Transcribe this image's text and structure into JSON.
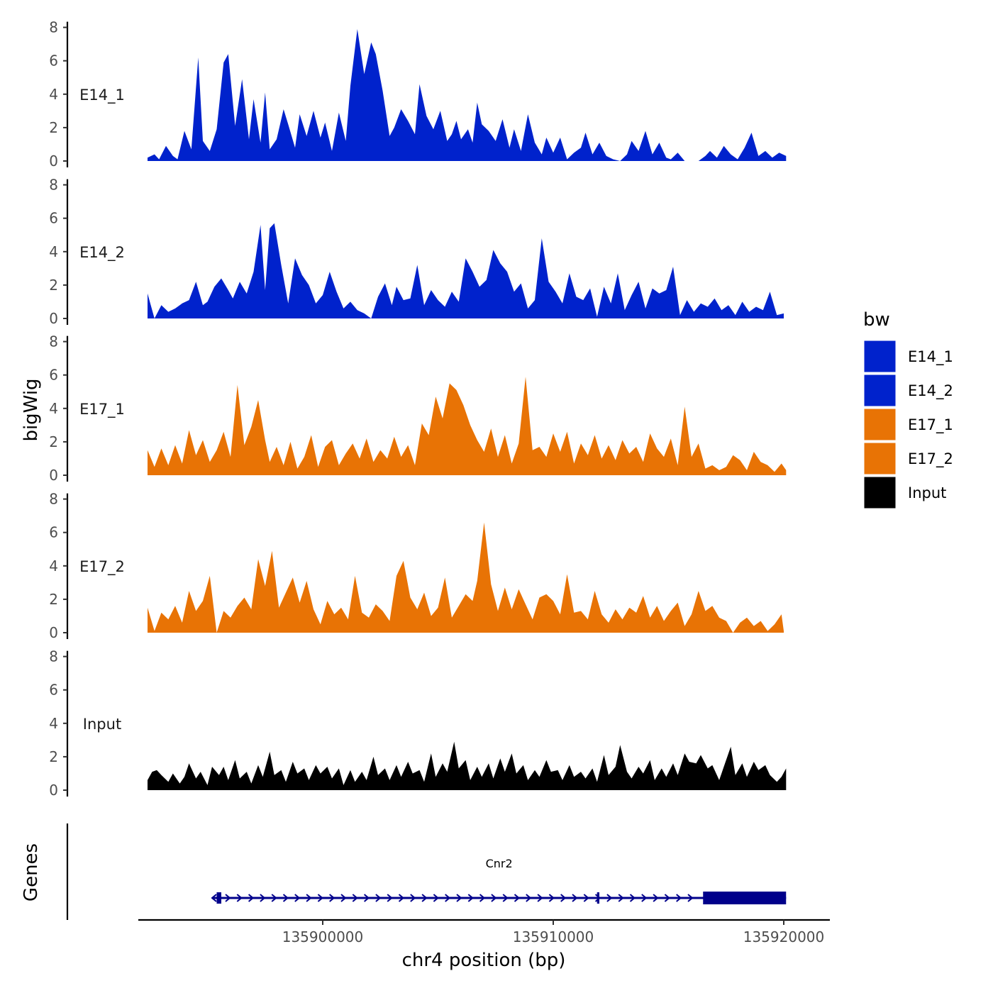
{
  "chart_data": {
    "type": "area",
    "xlabel": "chr4 position (bp)",
    "ylabel": "bigWig",
    "genes_label": "Genes",
    "xlim": [
      135892000,
      135922000
    ],
    "x_ticks": [
      135900000,
      135910000,
      135920000
    ],
    "x_tick_labels": [
      "135900000",
      "135910000",
      "135920000"
    ],
    "ylim": [
      0,
      8
    ],
    "y_ticks": [
      0,
      2,
      4,
      6,
      8
    ],
    "y_tick_labels": [
      "0",
      "2",
      "4",
      "6",
      "8"
    ],
    "legend": {
      "title": "bw",
      "entries": [
        {
          "label": "E14_1",
          "color": "#0022CC"
        },
        {
          "label": "E14_2",
          "color": "#0022CC"
        },
        {
          "label": "E17_1",
          "color": "#E87305"
        },
        {
          "label": "E17_2",
          "color": "#E87305"
        },
        {
          "label": "Input",
          "color": "#000000"
        }
      ]
    },
    "series": [
      {
        "name": "E14_1",
        "color": "#0022CC",
        "x": [
          135892400,
          135892700,
          135892900,
          135893200,
          135893500,
          135893700,
          135894000,
          135894300,
          135894600,
          135894800,
          135895100,
          135895400,
          135895700,
          135895900,
          135896200,
          135896500,
          135896800,
          135897000,
          135897300,
          135897500,
          135897700,
          135898000,
          135898300,
          135898500,
          135898800,
          135899000,
          135899300,
          135899600,
          135899900,
          135900100,
          135900400,
          135900700,
          135901000,
          135901200,
          135901500,
          135901800,
          135902100,
          135902300,
          135902600,
          135902900,
          135903100,
          135903400,
          135903700,
          135904000,
          135904200,
          135904500,
          135904800,
          135905100,
          135905400,
          135905600,
          135905800,
          135906000,
          135906300,
          135906500,
          135906700,
          135906900,
          135907200,
          135907500,
          135907800,
          135908100,
          135908300,
          135908600,
          135908900,
          135909200,
          135909500,
          135909700,
          135910000,
          135910300,
          135910600,
          135910900,
          135911200,
          135911400,
          135911700,
          135912000,
          135912300,
          135912600,
          135912900,
          135913200,
          135913400,
          135913700,
          135914000,
          135914300,
          135914600,
          135914900,
          135915100,
          135915400,
          135915700,
          135916000,
          135916300,
          135916600,
          135916800,
          135917100,
          135917400,
          135917700,
          135918000,
          135918300,
          135918600,
          135918900,
          135919200,
          135919500,
          135919800,
          135920100
        ],
        "y": [
          0.2,
          0.4,
          0.1,
          0.9,
          0.3,
          0.1,
          1.8,
          0.7,
          6.2,
          1.2,
          0.6,
          1.9,
          5.9,
          6.4,
          2.1,
          4.9,
          1.3,
          3.7,
          1.1,
          4.1,
          0.7,
          1.3,
          3.1,
          2.2,
          0.8,
          2.8,
          1.5,
          3.0,
          1.4,
          2.3,
          0.6,
          2.9,
          1.2,
          4.5,
          7.9,
          5.2,
          7.1,
          6.4,
          4.2,
          1.5,
          2.0,
          3.1,
          2.4,
          1.6,
          4.6,
          2.7,
          1.9,
          3.0,
          1.2,
          1.6,
          2.4,
          1.3,
          1.9,
          1.1,
          3.5,
          2.2,
          1.8,
          1.2,
          2.5,
          0.8,
          1.9,
          0.6,
          2.8,
          1.1,
          0.4,
          1.4,
          0.5,
          1.4,
          0.1,
          0.5,
          0.8,
          1.7,
          0.4,
          1.1,
          0.3,
          0.1,
          0.0,
          0.4,
          1.2,
          0.6,
          1.8,
          0.4,
          1.1,
          0.2,
          0.1,
          0.5,
          0.0,
          0.0,
          0.0,
          0.3,
          0.6,
          0.2,
          0.9,
          0.4,
          0.1,
          0.8,
          1.7,
          0.3,
          0.6,
          0.2,
          0.5,
          0.3
        ]
      },
      {
        "name": "E14_2",
        "color": "#0022CC",
        "x": [
          135892400,
          135892700,
          135893000,
          135893300,
          135893600,
          135893900,
          135894200,
          135894500,
          135894800,
          135895000,
          135895300,
          135895600,
          135895900,
          135896100,
          135896400,
          135896700,
          135897000,
          135897300,
          135897500,
          135897700,
          135897900,
          135898200,
          135898500,
          135898800,
          135899100,
          135899400,
          135899700,
          135900000,
          135900300,
          135900600,
          135900900,
          135901200,
          135901500,
          135901800,
          135902100,
          135902400,
          135902700,
          135903000,
          135903200,
          135903500,
          135903800,
          135904100,
          135904400,
          135904700,
          135905000,
          135905300,
          135905600,
          135905900,
          135906200,
          135906500,
          135906800,
          135907100,
          135907400,
          135907700,
          135908000,
          135908300,
          135908600,
          135908900,
          135909200,
          135909500,
          135909800,
          135910100,
          135910400,
          135910700,
          135911000,
          135911300,
          135911600,
          135911900,
          135912200,
          135912500,
          135912800,
          135913100,
          135913400,
          135913700,
          135914000,
          135914300,
          135914600,
          135914900,
          135915200,
          135915500,
          135915800,
          135916100,
          135916400,
          135916700,
          135917000,
          135917300,
          135917600,
          135917900,
          135918200,
          135918500,
          135918800,
          135919100,
          135919400,
          135919700,
          135920000
        ],
        "y": [
          1.5,
          0.0,
          0.8,
          0.4,
          0.6,
          0.9,
          1.1,
          2.2,
          0.8,
          1.0,
          1.9,
          2.4,
          1.7,
          1.2,
          2.2,
          1.5,
          2.8,
          5.6,
          1.7,
          5.4,
          5.7,
          3.2,
          0.9,
          3.6,
          2.6,
          2.0,
          0.9,
          1.4,
          2.8,
          1.6,
          0.6,
          1.0,
          0.5,
          0.3,
          0.0,
          1.3,
          2.1,
          0.8,
          1.9,
          1.1,
          1.2,
          3.2,
          0.8,
          1.7,
          1.1,
          0.7,
          1.6,
          1.0,
          3.6,
          2.8,
          1.9,
          2.3,
          4.1,
          3.3,
          2.8,
          1.6,
          2.1,
          0.6,
          1.1,
          4.8,
          2.2,
          1.6,
          0.9,
          2.7,
          1.3,
          1.1,
          1.8,
          0.1,
          1.9,
          0.9,
          2.7,
          0.5,
          1.4,
          2.2,
          0.6,
          1.8,
          1.5,
          1.7,
          3.1,
          0.2,
          1.1,
          0.4,
          0.9,
          0.7,
          1.2,
          0.5,
          0.8,
          0.2,
          1.0,
          0.4,
          0.7,
          0.5,
          1.6,
          0.2,
          0.3
        ]
      },
      {
        "name": "E17_1",
        "color": "#E87305",
        "x": [
          135892400,
          135892700,
          135893000,
          135893300,
          135893600,
          135893900,
          135894200,
          135894500,
          135894800,
          135895100,
          135895400,
          135895700,
          135896000,
          135896300,
          135896600,
          135896900,
          135897200,
          135897500,
          135897700,
          135898000,
          135898300,
          135898600,
          135898900,
          135899200,
          135899500,
          135899800,
          135900100,
          135900400,
          135900700,
          135901000,
          135901300,
          135901600,
          135901900,
          135902200,
          135902500,
          135902800,
          135903100,
          135903400,
          135903700,
          135904000,
          135904300,
          135904600,
          135904900,
          135905200,
          135905500,
          135905800,
          135906100,
          135906400,
          135906700,
          135907000,
          135907300,
          135907600,
          135907900,
          135908200,
          135908500,
          135908800,
          135909100,
          135909400,
          135909700,
          135910000,
          135910300,
          135910600,
          135910900,
          135911200,
          135911500,
          135911800,
          135912100,
          135912400,
          135912700,
          135913000,
          135913300,
          135913600,
          135913900,
          135914200,
          135914500,
          135914800,
          135915100,
          135915400,
          135915700,
          135916000,
          135916300,
          135916600,
          135916900,
          135917200,
          135917500,
          135917800,
          135918100,
          135918400,
          135918700,
          135919000,
          135919300,
          135919600,
          135919900,
          135920100
        ],
        "y": [
          1.5,
          0.5,
          1.6,
          0.6,
          1.8,
          0.7,
          2.7,
          1.2,
          2.1,
          0.8,
          1.5,
          2.6,
          1.1,
          5.4,
          1.8,
          2.9,
          4.5,
          2.1,
          0.8,
          1.7,
          0.6,
          2.0,
          0.4,
          1.1,
          2.4,
          0.5,
          1.7,
          2.1,
          0.6,
          1.3,
          1.9,
          1.0,
          2.2,
          0.8,
          1.5,
          1.0,
          2.3,
          1.1,
          1.8,
          0.6,
          3.1,
          2.4,
          4.7,
          3.4,
          5.5,
          5.1,
          4.2,
          3.0,
          2.1,
          1.4,
          2.8,
          1.1,
          2.4,
          0.7,
          1.9,
          5.9,
          1.5,
          1.7,
          1.1,
          2.5,
          1.4,
          2.6,
          0.7,
          1.9,
          1.2,
          2.4,
          1.0,
          1.8,
          0.9,
          2.1,
          1.3,
          1.7,
          0.8,
          2.5,
          1.6,
          1.1,
          2.2,
          0.6,
          4.1,
          1.1,
          1.9,
          0.4,
          0.6,
          0.3,
          0.5,
          1.2,
          0.9,
          0.3,
          1.4,
          0.8,
          0.6,
          0.2,
          0.7,
          0.3
        ]
      },
      {
        "name": "E17_2",
        "color": "#E87305",
        "x": [
          135892400,
          135892700,
          135893000,
          135893300,
          135893600,
          135893900,
          135894200,
          135894500,
          135894800,
          135895100,
          135895400,
          135895700,
          135896000,
          135896300,
          135896600,
          135896900,
          135897200,
          135897500,
          135897800,
          135898100,
          135898400,
          135898700,
          135899000,
          135899300,
          135899600,
          135899900,
          135900200,
          135900500,
          135900800,
          135901100,
          135901400,
          135901700,
          135902000,
          135902300,
          135902600,
          135902900,
          135903200,
          135903500,
          135903800,
          135904100,
          135904400,
          135904700,
          135905000,
          135905300,
          135905600,
          135905900,
          135906200,
          135906500,
          135906700,
          135907000,
          135907300,
          135907600,
          135907900,
          135908200,
          135908500,
          135908800,
          135909100,
          135909400,
          135909700,
          135910000,
          135910300,
          135910600,
          135910900,
          135911200,
          135911500,
          135911800,
          135912100,
          135912400,
          135912700,
          135913000,
          135913300,
          135913600,
          135913900,
          135914200,
          135914500,
          135914800,
          135915100,
          135915400,
          135915700,
          135916000,
          135916300,
          135916600,
          135916900,
          135917200,
          135917500,
          135917800,
          135918100,
          135918400,
          135918700,
          135919000,
          135919300,
          135919600,
          135919900,
          135920000
        ],
        "y": [
          1.5,
          0.1,
          1.2,
          0.8,
          1.6,
          0.6,
          2.5,
          1.3,
          1.9,
          3.4,
          0.0,
          1.3,
          0.9,
          1.6,
          2.1,
          1.4,
          4.4,
          2.8,
          4.9,
          1.5,
          2.4,
          3.3,
          1.8,
          3.1,
          1.4,
          0.5,
          1.9,
          1.1,
          1.5,
          0.8,
          3.4,
          1.2,
          0.9,
          1.7,
          1.3,
          0.7,
          3.4,
          4.3,
          2.1,
          1.4,
          2.4,
          1.0,
          1.5,
          3.3,
          0.9,
          1.6,
          2.3,
          1.9,
          3.1,
          6.6,
          2.9,
          1.3,
          2.7,
          1.4,
          2.6,
          1.7,
          0.8,
          2.1,
          2.3,
          1.9,
          1.1,
          3.5,
          1.2,
          1.3,
          0.8,
          2.5,
          1.1,
          0.6,
          1.4,
          0.8,
          1.5,
          1.2,
          2.2,
          0.9,
          1.6,
          0.7,
          1.3,
          1.8,
          0.4,
          1.1,
          2.5,
          1.3,
          1.6,
          0.9,
          0.7,
          0.0,
          0.6,
          0.9,
          0.4,
          0.7,
          0.1,
          0.5,
          1.1,
          0.1
        ]
      },
      {
        "name": "Input",
        "color": "#000000",
        "x": [
          135892400,
          135892600,
          135892800,
          135893000,
          135893300,
          135893500,
          135893800,
          135894000,
          135894200,
          135894500,
          135894700,
          135895000,
          135895200,
          135895500,
          135895700,
          135895900,
          135896200,
          135896400,
          135896700,
          135896900,
          135897200,
          135897400,
          135897700,
          135897900,
          135898200,
          135898400,
          135898700,
          135898900,
          135899200,
          135899400,
          135899700,
          135899900,
          135900200,
          135900400,
          135900700,
          135900900,
          135901200,
          135901400,
          135901700,
          135901900,
          135902200,
          135902400,
          135902700,
          135902900,
          135903200,
          135903400,
          135903700,
          135903900,
          135904200,
          135904400,
          135904700,
          135904900,
          135905200,
          135905400,
          135905700,
          135905900,
          135906200,
          135906400,
          135906700,
          135906900,
          135907200,
          135907400,
          135907700,
          135907900,
          135908200,
          135908400,
          135908700,
          135908900,
          135909200,
          135909400,
          135909700,
          135909900,
          135910200,
          135910400,
          135910700,
          135910900,
          135911200,
          135911400,
          135911700,
          135911900,
          135912200,
          135912400,
          135912700,
          135912900,
          135913200,
          135913400,
          135913700,
          135913900,
          135914200,
          135914400,
          135914700,
          135914900,
          135915200,
          135915400,
          135915700,
          135915900,
          135916200,
          135916400,
          135916700,
          135916900,
          135917200,
          135917400,
          135917700,
          135917900,
          135918200,
          135918400,
          135918700,
          135918900,
          135919200,
          135919400,
          135919700,
          135919900,
          135920100
        ],
        "y": [
          0.6,
          1.1,
          1.2,
          0.9,
          0.5,
          1.0,
          0.4,
          0.8,
          1.6,
          0.7,
          1.1,
          0.3,
          1.4,
          0.9,
          1.4,
          0.6,
          1.8,
          0.7,
          1.1,
          0.4,
          1.5,
          0.8,
          2.3,
          0.9,
          1.2,
          0.5,
          1.7,
          1.0,
          1.3,
          0.6,
          1.5,
          1.0,
          1.4,
          0.7,
          1.3,
          0.3,
          1.2,
          0.5,
          1.1,
          0.6,
          2.0,
          0.9,
          1.3,
          0.6,
          1.5,
          0.8,
          1.7,
          1.0,
          1.2,
          0.5,
          2.2,
          0.8,
          1.6,
          1.1,
          2.9,
          1.3,
          1.8,
          0.6,
          1.4,
          0.8,
          1.6,
          0.7,
          1.9,
          1.1,
          2.2,
          1.0,
          1.5,
          0.6,
          1.2,
          0.8,
          1.8,
          1.1,
          1.2,
          0.6,
          1.5,
          0.8,
          1.1,
          0.7,
          1.3,
          0.5,
          2.1,
          0.9,
          1.4,
          2.7,
          1.1,
          0.7,
          1.4,
          1.0,
          1.8,
          0.6,
          1.3,
          0.8,
          1.6,
          0.9,
          2.2,
          1.7,
          1.6,
          2.1,
          1.3,
          1.5,
          0.6,
          1.4,
          2.6,
          0.9,
          1.6,
          0.8,
          1.7,
          1.2,
          1.5,
          0.9,
          0.5,
          0.8,
          1.3
        ]
      }
    ],
    "gene": {
      "name": "Cnr2",
      "start": 135895200,
      "end": 135920100,
      "thick_blocks": [
        [
          135895400,
          135895600
        ],
        [
          135911900,
          135912000
        ],
        [
          135916500,
          135920100
        ]
      ],
      "color": "#00008B"
    }
  }
}
